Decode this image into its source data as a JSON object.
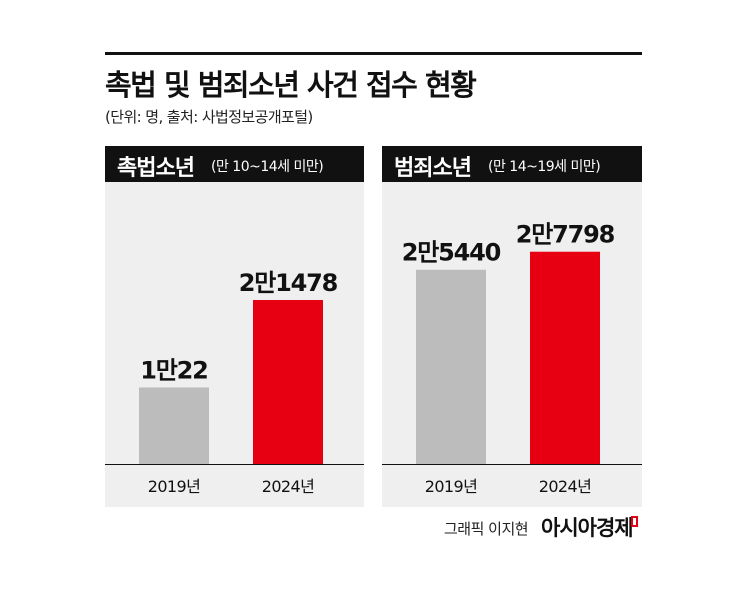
{
  "title": "촉법 및 범죄소년 사건 접수 현황",
  "subtitle": "(단위: 명, 출처: 사법정보공개포털)",
  "credit": "그래픽 이지현",
  "brand": "아시아경제",
  "colors": {
    "gray_bar": "#bcbcbc",
    "red_bar": "#e60012",
    "header_bg": "#111111",
    "panel_bg": "#efefef"
  },
  "chart_data": [
    {
      "type": "bar",
      "title": "촉법소년",
      "subtitle": "(만 10~14세 미만)",
      "categories": [
        "2019년",
        "2024년"
      ],
      "values": [
        10022,
        21478
      ],
      "data_labels": [
        "1만22",
        "2만1478"
      ],
      "ylim": [
        0,
        33000
      ]
    },
    {
      "type": "bar",
      "title": "범죄소년",
      "subtitle": "(만 14~19세 미만)",
      "categories": [
        "2019년",
        "2024년"
      ],
      "values": [
        25440,
        27798
      ],
      "data_labels": [
        "2만5440",
        "2만7798"
      ],
      "ylim": [
        0,
        33000
      ]
    }
  ]
}
